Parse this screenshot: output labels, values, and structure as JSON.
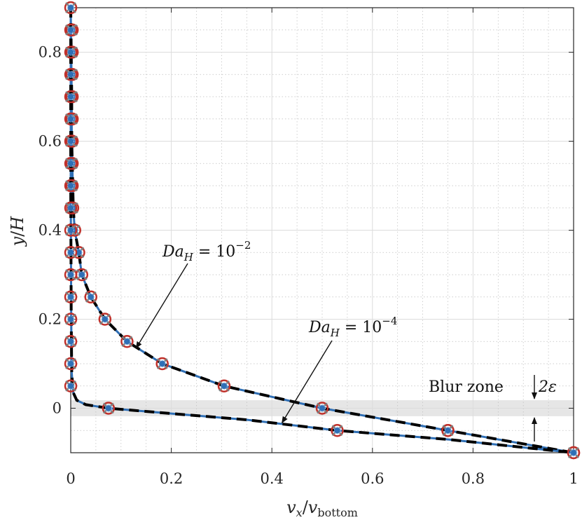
{
  "chart_data": {
    "type": "line",
    "xlabel": {
      "main": "v",
      "sub_main": "x",
      "sep": "/",
      "den": "v",
      "sub_den": "bottom"
    },
    "ylabel": {
      "main": "y",
      "sep": "/",
      "den": "H"
    },
    "xlim": [
      0,
      1
    ],
    "ylim": [
      -0.1,
      0.9
    ],
    "xticks": [
      {
        "value": 0,
        "label": "0"
      },
      {
        "value": 0.2,
        "label": "0.2"
      },
      {
        "value": 0.4,
        "label": "0.4"
      },
      {
        "value": 0.6,
        "label": "0.6"
      },
      {
        "value": 0.8,
        "label": "0.8"
      },
      {
        "value": 1,
        "label": "1"
      }
    ],
    "yticks": [
      {
        "value": 0,
        "label": "0"
      },
      {
        "value": 0.2,
        "label": "0.2"
      },
      {
        "value": 0.4,
        "label": "0.4"
      },
      {
        "value": 0.6,
        "label": "0.6"
      },
      {
        "value": 0.8,
        "label": "0.8"
      }
    ],
    "grid": true,
    "minor_grid": true,
    "blur_zone": {
      "ymin": -0.018,
      "ymax": 0.018,
      "color": "#e6e6e6"
    },
    "colors": {
      "solid": "#2f6fb5",
      "dashed": "#000000",
      "marker_ring": "#c0302a",
      "marker_cross": "#7f7f7f",
      "marker_fill": "#2f6fb5"
    },
    "series": [
      {
        "curve": [
          [
            0,
            0.9
          ],
          [
            0.001,
            0.8
          ],
          [
            0.002,
            0.7
          ],
          [
            0.002,
            0.6
          ],
          [
            0.003,
            0.55
          ],
          [
            0.004,
            0.5
          ],
          [
            0.005,
            0.45
          ],
          [
            0.008,
            0.4
          ],
          [
            0.016,
            0.35
          ],
          [
            0.022,
            0.3
          ],
          [
            0.04,
            0.25
          ],
          [
            0.068,
            0.2
          ],
          [
            0.112,
            0.15
          ],
          [
            0.182,
            0.1
          ],
          [
            0.305,
            0.05
          ],
          [
            0.5,
            0.0
          ],
          [
            0.75,
            -0.05
          ],
          [
            1.0,
            -0.1
          ]
        ],
        "markers": [
          [
            0.003,
            0.85
          ],
          [
            0.003,
            0.8
          ],
          [
            0.003,
            0.75
          ],
          [
            0.003,
            0.7
          ],
          [
            0.003,
            0.65
          ],
          [
            0.003,
            0.6
          ],
          [
            0.003,
            0.55
          ],
          [
            0.003,
            0.5
          ],
          [
            0.004,
            0.45
          ],
          [
            0.008,
            0.4
          ],
          [
            0.016,
            0.35
          ],
          [
            0.022,
            0.3
          ],
          [
            0.04,
            0.25
          ],
          [
            0.068,
            0.2
          ],
          [
            0.112,
            0.15
          ],
          [
            0.182,
            0.1
          ],
          [
            0.305,
            0.05
          ],
          [
            0.5,
            0.0
          ],
          [
            0.75,
            -0.05
          ],
          [
            1.0,
            -0.1
          ]
        ]
      },
      {
        "curve": [
          [
            0,
            0.9
          ],
          [
            0,
            0.5
          ],
          [
            0.001,
            0.2
          ],
          [
            0.002,
            0.08
          ],
          [
            0.005,
            0.035
          ],
          [
            0.012,
            0.018
          ],
          [
            0.03,
            0.008
          ],
          [
            0.075,
            0.0
          ],
          [
            0.2,
            -0.012
          ],
          [
            0.35,
            -0.026
          ],
          [
            0.53,
            -0.05
          ],
          [
            0.75,
            -0.07
          ],
          [
            1.0,
            -0.1
          ]
        ],
        "markers": [
          [
            0,
            0.9
          ],
          [
            0,
            0.85
          ],
          [
            0,
            0.8
          ],
          [
            0,
            0.75
          ],
          [
            0,
            0.7
          ],
          [
            0,
            0.65
          ],
          [
            0,
            0.6
          ],
          [
            0,
            0.55
          ],
          [
            0,
            0.5
          ],
          [
            0,
            0.45
          ],
          [
            0,
            0.4
          ],
          [
            0,
            0.35
          ],
          [
            0,
            0.3
          ],
          [
            0,
            0.25
          ],
          [
            0,
            0.2
          ],
          [
            0,
            0.15
          ],
          [
            0,
            0.1
          ],
          [
            0,
            0.05
          ],
          [
            0.075,
            0.0
          ],
          [
            0.53,
            -0.05
          ],
          [
            0.75,
            -0.05
          ],
          [
            1.0,
            -0.1
          ]
        ]
      }
    ],
    "annotations": [
      {
        "base": "Da",
        "sub": "H",
        "rest": " = 10",
        "sup": "−2",
        "target": [
          0.13,
          0.135
        ]
      },
      {
        "base": "Da",
        "sub": "H",
        "rest": " = 10",
        "sup": "−4",
        "target": [
          0.42,
          -0.033
        ]
      }
    ],
    "blur_label": {
      "text": "Blur zone",
      "eps_label": "2ε"
    }
  }
}
